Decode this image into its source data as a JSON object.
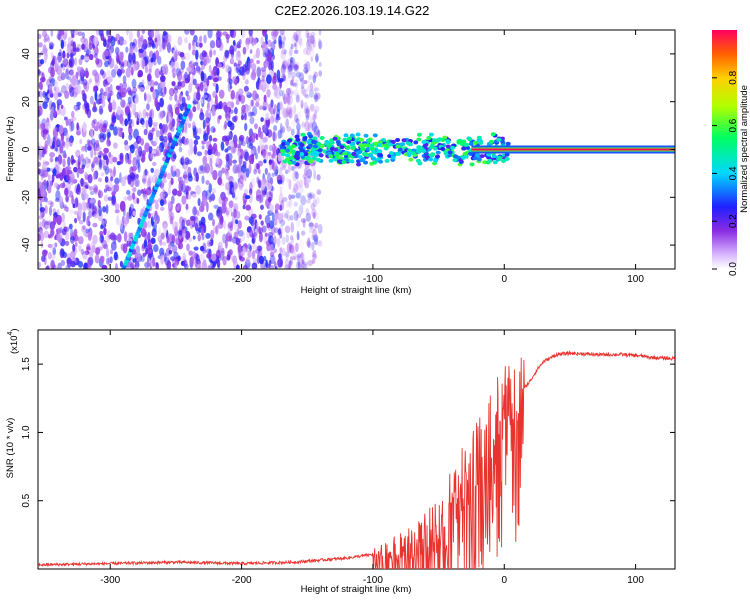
{
  "title": "C2E2.2026.103.19.14.G22",
  "chart_data": [
    {
      "type": "heatmap",
      "title": "C2E2.2026.103.19.14.G22",
      "xlabel": "Height of straight line (km)",
      "ylabel": "Frequency (Hz)",
      "xlim": [
        -355,
        130
      ],
      "ylim": [
        -50,
        50
      ],
      "xticks": [
        -300,
        -200,
        -100,
        0,
        100
      ],
      "yticks": [
        -40,
        -20,
        0,
        20,
        40
      ],
      "colorbar": {
        "label": "Normalized spectral amplitude",
        "range": [
          0,
          1
        ],
        "ticks": [
          0.0,
          0.2,
          0.4,
          0.6,
          0.8
        ]
      },
      "features": [
        {
          "name": "noise",
          "x_range": [
            -355,
            -150
          ],
          "y_range": [
            -50,
            50
          ],
          "amplitude": 0.15
        },
        {
          "name": "diagonal streak",
          "points": [
            [
              -290,
              -50
            ],
            [
              -240,
              18
            ]
          ],
          "amplitude": 0.45
        },
        {
          "name": "signal band",
          "x_range": [
            -170,
            5
          ],
          "y_center": 0,
          "amplitude": 0.35
        },
        {
          "name": "steady line",
          "x_range": [
            -25,
            130
          ],
          "y": 0,
          "amplitude": 1.0
        }
      ]
    },
    {
      "type": "line",
      "xlabel": "Height of straight line (km)",
      "ylabel": "SNR (10 * v/v)",
      "multiplier_label": "(x10",
      "multiplier_exp": "4",
      "multiplier_close": ")",
      "xlim": [
        -355,
        130
      ],
      "ylim": [
        0,
        1.75
      ],
      "xticks": [
        -300,
        -200,
        -100,
        0,
        100
      ],
      "yticks": [
        0.5,
        1.0,
        1.5
      ],
      "ytick_labels": [
        "0.5",
        "1.0",
        "1.5"
      ],
      "color": "#e8332e",
      "x": [
        -355,
        -300,
        -250,
        -200,
        -160,
        -120,
        -90,
        -70,
        -55,
        -45,
        -35,
        -28,
        -22,
        -18,
        -14,
        -10,
        -5,
        0,
        5,
        10,
        15,
        20,
        25,
        30,
        40,
        50,
        70,
        90,
        105,
        110,
        130
      ],
      "values": [
        0.03,
        0.04,
        0.05,
        0.04,
        0.05,
        0.08,
        0.12,
        0.18,
        0.28,
        0.45,
        0.6,
        0.75,
        0.9,
        0.95,
        1.05,
        1.12,
        1.18,
        1.22,
        1.25,
        1.28,
        1.32,
        1.38,
        1.46,
        1.52,
        1.57,
        1.58,
        1.57,
        1.57,
        1.56,
        1.55,
        1.54
      ]
    }
  ]
}
